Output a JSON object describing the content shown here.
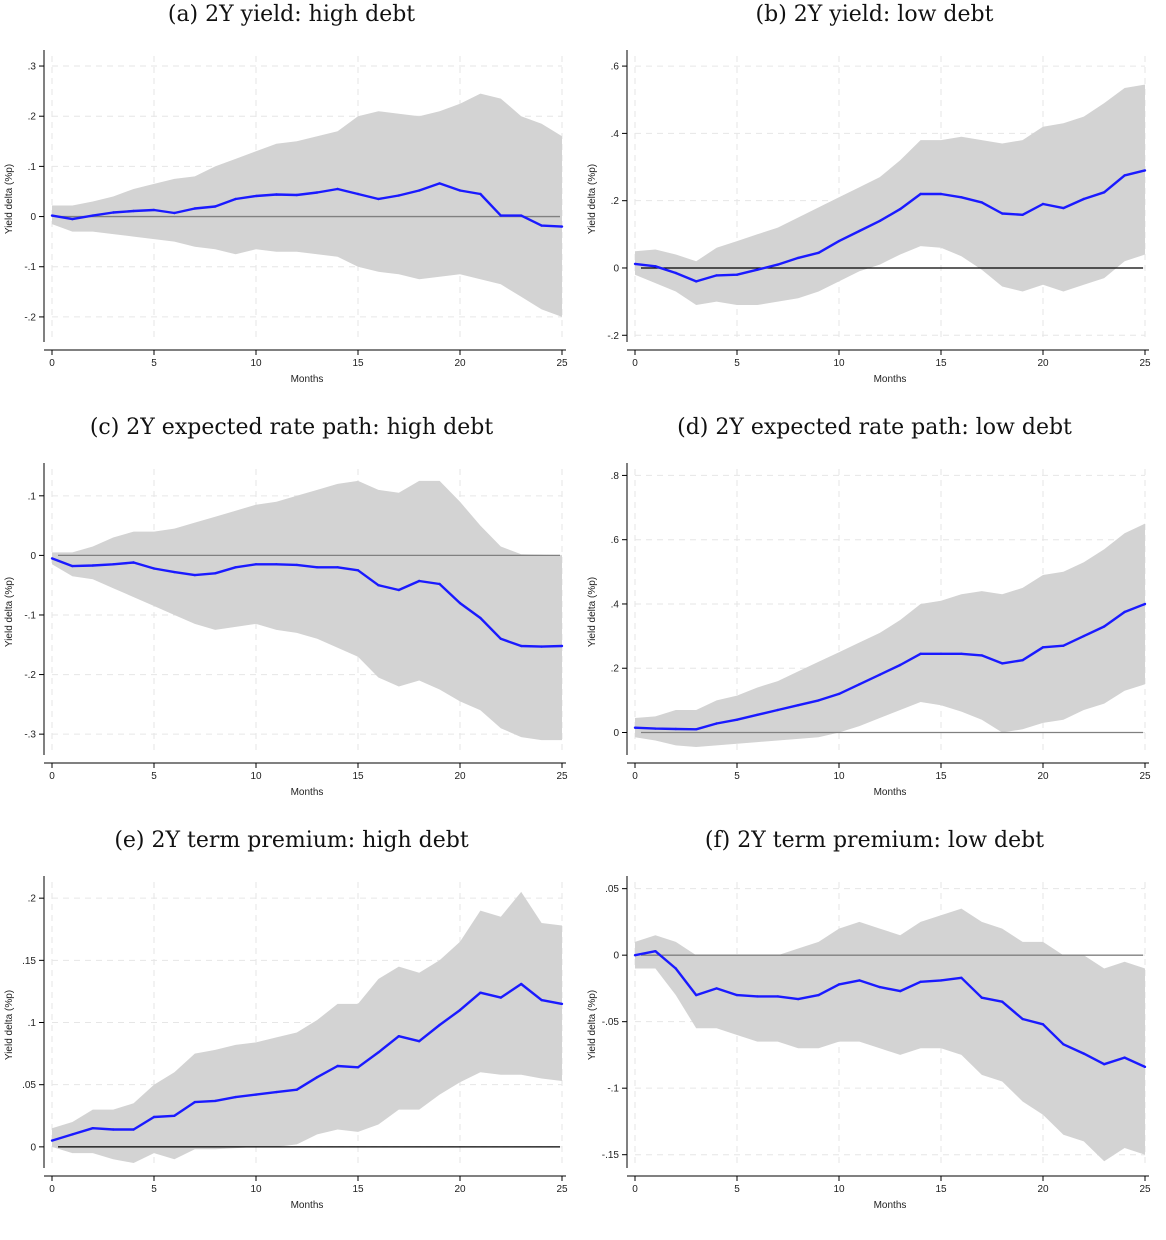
{
  "chart_data": [
    {
      "type": "line",
      "title": "(a) 2Y yield: high debt",
      "xlabel": "Months",
      "ylabel": "Yield delta (%p)",
      "xlim": [
        0,
        25
      ],
      "ylim": [
        -0.25,
        0.32
      ],
      "xticks": [
        0,
        5,
        10,
        15,
        20,
        25
      ],
      "xtick_labels": [
        "0",
        "5",
        "10",
        "15",
        "20",
        "25"
      ],
      "yticks": [
        -0.2,
        -0.1,
        0,
        0.1,
        0.2,
        0.3
      ],
      "ytick_labels": [
        "-.2",
        "-.1",
        "0",
        ".1",
        ".2",
        ".3"
      ],
      "zero_line_color": "#808080",
      "grid": true,
      "x": [
        0,
        1,
        2,
        3,
        4,
        5,
        6,
        7,
        8,
        9,
        10,
        11,
        12,
        13,
        14,
        15,
        16,
        17,
        18,
        19,
        20,
        21,
        22,
        23,
        24,
        25
      ],
      "series": [
        {
          "color": "#1a1aff",
          "values": [
            0.002,
            -0.005,
            0.002,
            0.008,
            0.011,
            0.013,
            0.007,
            0.016,
            0.02,
            0.035,
            0.041,
            0.044,
            0.043,
            0.048,
            0.055,
            0.045,
            0.035,
            0.042,
            0.052,
            0.066,
            0.052,
            0.045,
            0.002,
            0.002,
            -0.018,
            -0.02
          ],
          "ci_upper": [
            0.022,
            0.022,
            0.03,
            0.04,
            0.055,
            0.065,
            0.075,
            0.08,
            0.1,
            0.115,
            0.13,
            0.145,
            0.15,
            0.16,
            0.17,
            0.2,
            0.21,
            0.205,
            0.2,
            0.21,
            0.225,
            0.245,
            0.235,
            0.2,
            0.185,
            0.16
          ],
          "ci_lower": [
            -0.015,
            -0.03,
            -0.03,
            -0.035,
            -0.04,
            -0.045,
            -0.05,
            -0.06,
            -0.065,
            -0.075,
            -0.065,
            -0.07,
            -0.07,
            -0.075,
            -0.08,
            -0.1,
            -0.11,
            -0.115,
            -0.125,
            -0.12,
            -0.115,
            -0.125,
            -0.135,
            -0.16,
            -0.185,
            -0.2
          ]
        }
      ]
    },
    {
      "type": "line",
      "title": "(b) 2Y yield: low debt",
      "xlabel": "Months",
      "ylabel": "Yield delta (%p)",
      "xlim": [
        0,
        25
      ],
      "ylim": [
        -0.22,
        0.63
      ],
      "xticks": [
        0,
        5,
        10,
        15,
        20,
        25
      ],
      "xtick_labels": [
        "0",
        "5",
        "10",
        "15",
        "20",
        "25"
      ],
      "yticks": [
        -0.2,
        0,
        0.2,
        0.4,
        0.6
      ],
      "ytick_labels": [
        "-.2",
        "0",
        ".2",
        ".4",
        ".6"
      ],
      "zero_line_color": "#000000",
      "grid": true,
      "x": [
        0,
        1,
        2,
        3,
        4,
        5,
        6,
        7,
        8,
        9,
        10,
        11,
        12,
        13,
        14,
        15,
        16,
        17,
        18,
        19,
        20,
        21,
        22,
        23,
        24,
        25
      ],
      "series": [
        {
          "color": "#1a1aff",
          "values": [
            0.012,
            0.005,
            -0.015,
            -0.04,
            -0.022,
            -0.02,
            -0.005,
            0.01,
            0.03,
            0.045,
            0.08,
            0.11,
            0.14,
            0.175,
            0.22,
            0.22,
            0.21,
            0.195,
            0.162,
            0.158,
            0.19,
            0.178,
            0.205,
            0.225,
            0.275,
            0.29
          ],
          "ci_upper": [
            0.05,
            0.055,
            0.04,
            0.02,
            0.06,
            0.08,
            0.1,
            0.12,
            0.15,
            0.18,
            0.21,
            0.24,
            0.27,
            0.32,
            0.38,
            0.38,
            0.39,
            0.38,
            0.37,
            0.38,
            0.42,
            0.43,
            0.45,
            0.49,
            0.535,
            0.545
          ],
          "ci_lower": [
            -0.02,
            -0.045,
            -0.07,
            -0.11,
            -0.1,
            -0.11,
            -0.11,
            -0.1,
            -0.09,
            -0.07,
            -0.04,
            -0.01,
            0.01,
            0.04,
            0.065,
            0.06,
            0.035,
            -0.005,
            -0.055,
            -0.07,
            -0.05,
            -0.07,
            -0.05,
            -0.03,
            0.02,
            0.04
          ]
        }
      ]
    },
    {
      "type": "line",
      "title": "(c) 2Y expected rate path: high debt",
      "xlabel": "Months",
      "ylabel": "Yield delta (%p)",
      "xlim": [
        0,
        25
      ],
      "ylim": [
        -0.335,
        0.145
      ],
      "xticks": [
        0,
        5,
        10,
        15,
        20,
        25
      ],
      "xtick_labels": [
        "0",
        "5",
        "10",
        "15",
        "20",
        "25"
      ],
      "yticks": [
        -0.3,
        -0.2,
        -0.1,
        0,
        0.1
      ],
      "ytick_labels": [
        "-.3",
        "-.2",
        "-.1",
        "0",
        ".1"
      ],
      "zero_line_color": "#808080",
      "grid": true,
      "x": [
        0,
        1,
        2,
        3,
        4,
        5,
        6,
        7,
        8,
        9,
        10,
        11,
        12,
        13,
        14,
        15,
        16,
        17,
        18,
        19,
        20,
        21,
        22,
        23,
        24,
        25
      ],
      "series": [
        {
          "color": "#1a1aff",
          "values": [
            -0.005,
            -0.018,
            -0.017,
            -0.015,
            -0.012,
            -0.022,
            -0.028,
            -0.033,
            -0.03,
            -0.02,
            -0.015,
            -0.015,
            -0.016,
            -0.02,
            -0.02,
            -0.025,
            -0.05,
            -0.058,
            -0.043,
            -0.048,
            -0.08,
            -0.105,
            -0.14,
            -0.152,
            -0.153,
            -0.152
          ],
          "ci_upper": [
            0.005,
            0.005,
            0.015,
            0.03,
            0.04,
            0.04,
            0.045,
            0.055,
            0.065,
            0.075,
            0.085,
            0.09,
            0.1,
            0.11,
            0.12,
            0.125,
            0.11,
            0.105,
            0.125,
            0.125,
            0.09,
            0.05,
            0.015,
            0.002,
            0.001,
            0.0
          ],
          "ci_lower": [
            -0.015,
            -0.035,
            -0.04,
            -0.055,
            -0.07,
            -0.085,
            -0.1,
            -0.115,
            -0.125,
            -0.12,
            -0.115,
            -0.125,
            -0.13,
            -0.14,
            -0.155,
            -0.17,
            -0.205,
            -0.22,
            -0.21,
            -0.225,
            -0.245,
            -0.26,
            -0.29,
            -0.305,
            -0.31,
            -0.31
          ]
        }
      ]
    },
    {
      "type": "line",
      "title": "(d) 2Y expected rate path: low debt",
      "xlabel": "Months",
      "ylabel": "Yield delta (%p)",
      "xlim": [
        0,
        25
      ],
      "ylim": [
        -0.07,
        0.82
      ],
      "xticks": [
        0,
        5,
        10,
        15,
        20,
        25
      ],
      "xtick_labels": [
        "0",
        "5",
        "10",
        "15",
        "20",
        "25"
      ],
      "yticks": [
        0,
        0.2,
        0.4,
        0.6,
        0.8
      ],
      "ytick_labels": [
        "0",
        ".2",
        ".4",
        ".6",
        ".8"
      ],
      "zero_line_color": "#808080",
      "grid": true,
      "x": [
        0,
        1,
        2,
        3,
        4,
        5,
        6,
        7,
        8,
        9,
        10,
        11,
        12,
        13,
        14,
        15,
        16,
        17,
        18,
        19,
        20,
        21,
        22,
        23,
        24,
        25
      ],
      "series": [
        {
          "color": "#1a1aff",
          "values": [
            0.015,
            0.012,
            0.011,
            0.01,
            0.028,
            0.04,
            0.055,
            0.07,
            0.085,
            0.1,
            0.12,
            0.15,
            0.18,
            0.21,
            0.245,
            0.245,
            0.245,
            0.24,
            0.215,
            0.225,
            0.265,
            0.27,
            0.3,
            0.33,
            0.375,
            0.4
          ],
          "ci_upper": [
            0.045,
            0.05,
            0.07,
            0.07,
            0.1,
            0.115,
            0.14,
            0.16,
            0.19,
            0.22,
            0.25,
            0.28,
            0.31,
            0.35,
            0.4,
            0.41,
            0.43,
            0.44,
            0.43,
            0.45,
            0.49,
            0.5,
            0.53,
            0.57,
            0.62,
            0.65
          ],
          "ci_lower": [
            -0.015,
            -0.025,
            -0.04,
            -0.045,
            -0.04,
            -0.035,
            -0.03,
            -0.025,
            -0.02,
            -0.015,
            0.0,
            0.02,
            0.045,
            0.07,
            0.095,
            0.085,
            0.065,
            0.04,
            0.0,
            0.01,
            0.03,
            0.04,
            0.07,
            0.09,
            0.13,
            0.15
          ]
        }
      ]
    },
    {
      "type": "line",
      "title": "(e) 2Y term premium: high debt",
      "xlabel": "Months",
      "ylabel": "Yield delta (%p)",
      "xlim": [
        0,
        25
      ],
      "ylim": [
        -0.017,
        0.213
      ],
      "xticks": [
        0,
        5,
        10,
        15,
        20,
        25
      ],
      "xtick_labels": [
        "0",
        "5",
        "10",
        "15",
        "20",
        "25"
      ],
      "yticks": [
        0,
        0.05,
        0.1,
        0.15,
        0.2
      ],
      "ytick_labels": [
        "0",
        ".05",
        ".1",
        ".15",
        ".2"
      ],
      "zero_line_color": "#000000",
      "grid": true,
      "x": [
        0,
        1,
        2,
        3,
        4,
        5,
        6,
        7,
        8,
        9,
        10,
        11,
        12,
        13,
        14,
        15,
        16,
        17,
        18,
        19,
        20,
        21,
        22,
        23,
        24,
        25
      ],
      "series": [
        {
          "color": "#1a1aff",
          "values": [
            0.005,
            0.01,
            0.015,
            0.014,
            0.014,
            0.024,
            0.025,
            0.036,
            0.037,
            0.04,
            0.042,
            0.044,
            0.046,
            0.056,
            0.065,
            0.064,
            0.076,
            0.089,
            0.085,
            0.098,
            0.11,
            0.124,
            0.12,
            0.131,
            0.118,
            0.115
          ],
          "ci_upper": [
            0.015,
            0.02,
            0.03,
            0.03,
            0.035,
            0.05,
            0.06,
            0.075,
            0.078,
            0.082,
            0.084,
            0.088,
            0.092,
            0.102,
            0.115,
            0.115,
            0.135,
            0.145,
            0.14,
            0.15,
            0.165,
            0.19,
            0.185,
            0.205,
            0.18,
            0.178
          ],
          "ci_lower": [
            0.0,
            -0.005,
            -0.005,
            -0.01,
            -0.013,
            -0.005,
            -0.01,
            -0.002,
            -0.002,
            -0.001,
            0.0,
            0.0,
            0.002,
            0.01,
            0.014,
            0.012,
            0.018,
            0.03,
            0.03,
            0.042,
            0.052,
            0.06,
            0.058,
            0.058,
            0.055,
            0.053
          ]
        }
      ]
    },
    {
      "type": "line",
      "title": "(f) 2Y term premium: low debt",
      "xlabel": "Months",
      "ylabel": "Yield delta (%p)",
      "xlim": [
        0,
        25
      ],
      "ylim": [
        -0.16,
        0.055
      ],
      "xticks": [
        0,
        5,
        10,
        15,
        20,
        25
      ],
      "xtick_labels": [
        "0",
        "5",
        "10",
        "15",
        "20",
        "25"
      ],
      "yticks": [
        -0.15,
        -0.1,
        -0.05,
        0,
        0.05
      ],
      "ytick_labels": [
        "-.15",
        "-.1",
        "-.05",
        "0",
        ".05"
      ],
      "zero_line_color": "#808080",
      "grid": true,
      "x": [
        0,
        1,
        2,
        3,
        4,
        5,
        6,
        7,
        8,
        9,
        10,
        11,
        12,
        13,
        14,
        15,
        16,
        17,
        18,
        19,
        20,
        21,
        22,
        23,
        24,
        25
      ],
      "series": [
        {
          "color": "#1a1aff",
          "values": [
            0.0,
            0.003,
            -0.01,
            -0.03,
            -0.025,
            -0.03,
            -0.031,
            -0.031,
            -0.033,
            -0.03,
            -0.022,
            -0.019,
            -0.024,
            -0.027,
            -0.02,
            -0.019,
            -0.017,
            -0.032,
            -0.035,
            -0.048,
            -0.052,
            -0.067,
            -0.074,
            -0.082,
            -0.077,
            -0.084
          ],
          "ci_upper": [
            0.01,
            0.015,
            0.01,
            0.0,
            0.0,
            0.0,
            0.0,
            0.0,
            0.005,
            0.01,
            0.02,
            0.025,
            0.02,
            0.015,
            0.025,
            0.03,
            0.035,
            0.025,
            0.02,
            0.01,
            0.01,
            0.0,
            0.0,
            -0.01,
            -0.005,
            -0.01
          ],
          "ci_lower": [
            -0.01,
            -0.01,
            -0.03,
            -0.055,
            -0.055,
            -0.06,
            -0.065,
            -0.065,
            -0.07,
            -0.07,
            -0.065,
            -0.065,
            -0.07,
            -0.075,
            -0.07,
            -0.07,
            -0.075,
            -0.09,
            -0.095,
            -0.11,
            -0.12,
            -0.135,
            -0.14,
            -0.155,
            -0.145,
            -0.15
          ]
        }
      ]
    }
  ]
}
